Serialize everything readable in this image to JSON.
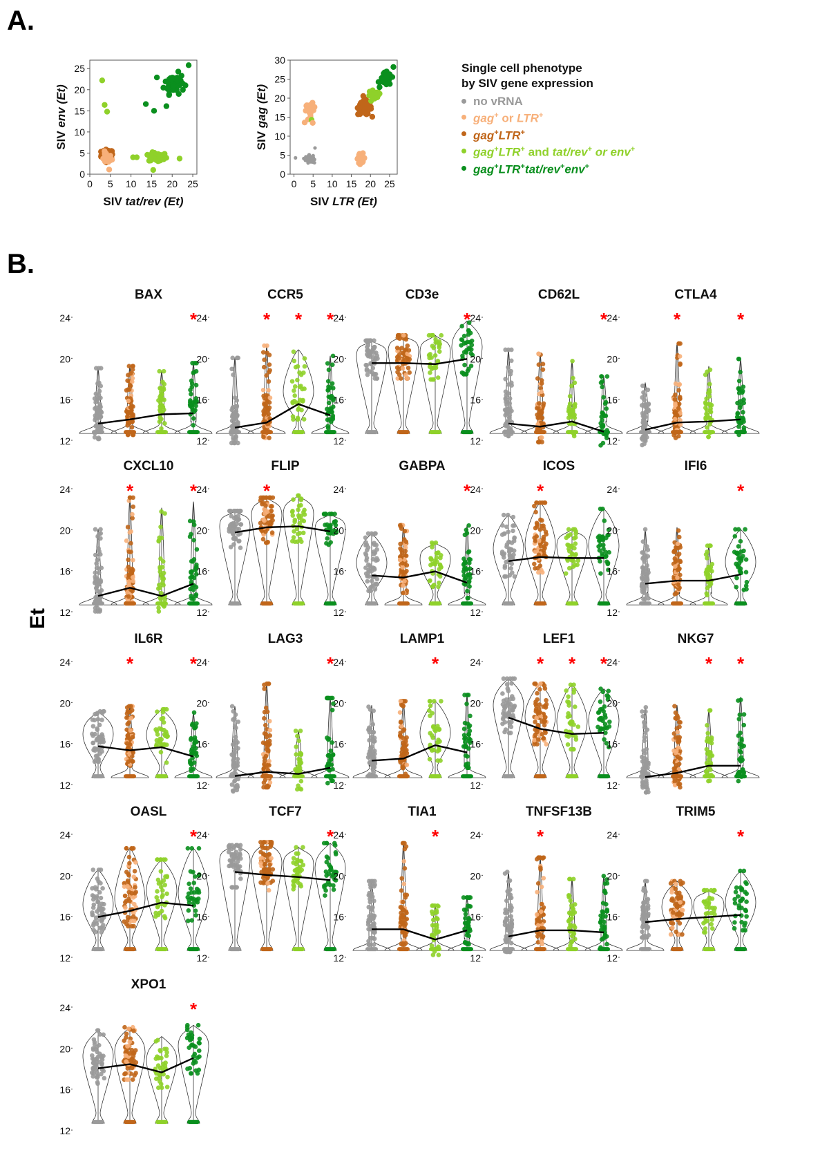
{
  "panels": {
    "a_label": "A.",
    "b_label": "B."
  },
  "colors": {
    "no_vrna": "#9a9a9a",
    "gag_or_ltr": "#f7b07a",
    "gag_ltr": "#c0661a",
    "gag_ltr_tat_or_env": "#8fd12a",
    "gag_ltr_tat_env": "#0a8f1e",
    "significance": "#ff0000"
  },
  "legend": {
    "title_line1": "Single cell phenotype",
    "title_line2": "by SIV gene expression",
    "items": [
      {
        "key": "no_vrna",
        "parts": [
          {
            "t": "no vRNA",
            "i": false
          }
        ]
      },
      {
        "key": "gag_or_ltr",
        "parts": [
          {
            "t": "gag",
            "i": true
          },
          {
            "t": "+",
            "sup": true
          },
          {
            "t": " or ",
            "i": false
          },
          {
            "t": "LTR",
            "i": true
          },
          {
            "t": "+",
            "sup": true
          }
        ]
      },
      {
        "key": "gag_ltr",
        "parts": [
          {
            "t": "gag",
            "i": true
          },
          {
            "t": "+",
            "sup": true
          },
          {
            "t": "LTR",
            "i": true
          },
          {
            "t": "+",
            "sup": true
          }
        ]
      },
      {
        "key": "gag_ltr_tat_or_env",
        "parts": [
          {
            "t": "gag",
            "i": true
          },
          {
            "t": "+",
            "sup": true
          },
          {
            "t": "LTR",
            "i": true
          },
          {
            "t": "+",
            "sup": true
          },
          {
            "t": " and ",
            "i": false
          },
          {
            "t": "tat/rev",
            "i": true
          },
          {
            "t": "+",
            "sup": true
          },
          {
            "t": " or ",
            "i": true
          },
          {
            "t": "env",
            "i": true
          },
          {
            "t": "+",
            "sup": true
          }
        ]
      },
      {
        "key": "gag_ltr_tat_env",
        "parts": [
          {
            "t": "gag",
            "i": true
          },
          {
            "t": "+",
            "sup": true
          },
          {
            "t": "LTR",
            "i": true
          },
          {
            "t": "+",
            "sup": true
          },
          {
            "t": "tat/rev",
            "i": true
          },
          {
            "t": "+",
            "sup": true
          },
          {
            "t": "env",
            "i": true
          },
          {
            "t": "+",
            "sup": true
          }
        ]
      }
    ]
  },
  "chart_data": [
    {
      "type": "scatter",
      "title": "",
      "xlabel_plain": "SIV ",
      "xlabel_italic": "tat/rev (Et)",
      "ylabel_plain": "SIV ",
      "ylabel_italic": "env (Et)",
      "xlim": [
        0,
        26
      ],
      "ylim": [
        0,
        27
      ],
      "xticks": [
        0,
        5,
        10,
        15,
        20,
        25
      ],
      "yticks": [
        0,
        5,
        10,
        15,
        20,
        25
      ],
      "clusters": [
        {
          "group": "gag_ltr",
          "center": [
            4.2,
            4.5
          ],
          "spread": [
            1.3,
            1.2
          ],
          "n": 70
        },
        {
          "group": "gag_or_ltr",
          "center": [
            4.0,
            3.8
          ],
          "spread": [
            1.2,
            1.2
          ],
          "n": 20
        },
        {
          "group": "gag_ltr_tat_or_env",
          "center": [
            16.5,
            4.0
          ],
          "spread": [
            2.0,
            1.0
          ],
          "n": 45
        },
        {
          "group": "gag_ltr_tat_env",
          "center": [
            20.5,
            21.5
          ],
          "spread": [
            2.2,
            2.2
          ],
          "n": 60
        }
      ],
      "points": [
        {
          "group": "gag_ltr_tat_or_env",
          "x": 3.0,
          "y": 22.2
        },
        {
          "group": "gag_ltr_tat_or_env",
          "x": 3.6,
          "y": 16.4
        },
        {
          "group": "gag_ltr_tat_or_env",
          "x": 4.2,
          "y": 14.8
        },
        {
          "group": "gag_ltr_tat_or_env",
          "x": 10.5,
          "y": 4.0
        },
        {
          "group": "gag_ltr_tat_or_env",
          "x": 11.4,
          "y": 4.0
        },
        {
          "group": "gag_ltr_tat_or_env",
          "x": 21.8,
          "y": 3.7
        },
        {
          "group": "gag_ltr_tat_or_env",
          "x": 15.4,
          "y": 1.0
        },
        {
          "group": "gag_ltr_tat_env",
          "x": 13.6,
          "y": 16.6
        },
        {
          "group": "gag_ltr_tat_env",
          "x": 15.6,
          "y": 15.0
        },
        {
          "group": "gag_ltr_tat_env",
          "x": 18.6,
          "y": 16.1
        },
        {
          "group": "gag_ltr_tat_env",
          "x": 24.0,
          "y": 25.8
        },
        {
          "group": "gag_or_ltr",
          "x": 4.7,
          "y": 1.1
        }
      ]
    },
    {
      "type": "scatter",
      "title": "",
      "xlabel_plain": "SIV ",
      "xlabel_italic": "LTR (Et)",
      "ylabel_plain": "SIV ",
      "ylabel_italic": "gag (Et)",
      "xlim": [
        -1,
        27
      ],
      "ylim": [
        0,
        30
      ],
      "xticks": [
        0,
        5,
        10,
        15,
        20,
        25
      ],
      "yticks": [
        0,
        5,
        10,
        15,
        20,
        25,
        30
      ],
      "clusters": [
        {
          "group": "no_vrna",
          "center": [
            4.0,
            4.0
          ],
          "spread": [
            0.9,
            0.9
          ],
          "n": 60,
          "small": true
        },
        {
          "group": "gag_or_ltr",
          "center": [
            4.3,
            17.0
          ],
          "spread": [
            1.1,
            1.4
          ],
          "n": 30
        },
        {
          "group": "gag_or_ltr",
          "center": [
            17.5,
            4.2
          ],
          "spread": [
            1.0,
            1.1
          ],
          "n": 18
        },
        {
          "group": "gag_ltr",
          "center": [
            18.5,
            17.5
          ],
          "spread": [
            1.6,
            1.7
          ],
          "n": 90
        },
        {
          "group": "gag_ltr_tat_or_env",
          "center": [
            21.0,
            20.5
          ],
          "spread": [
            1.6,
            1.5
          ],
          "n": 20
        },
        {
          "group": "gag_ltr_tat_env",
          "center": [
            24.0,
            25.0
          ],
          "spread": [
            1.3,
            1.5
          ],
          "n": 40
        }
      ],
      "points": [
        {
          "group": "no_vrna",
          "x": 0.4,
          "y": 4.3,
          "small": true
        },
        {
          "group": "no_vrna",
          "x": 5.5,
          "y": 6.9,
          "small": true
        },
        {
          "group": "gag_ltr_tat_or_env",
          "x": 4.6,
          "y": 14.3
        },
        {
          "group": "gag_or_ltr",
          "x": 2.8,
          "y": 13.6
        },
        {
          "group": "gag_or_ltr",
          "x": 4.9,
          "y": 13.5
        },
        {
          "group": "gag_ltr_tat_env",
          "x": 26.0,
          "y": 28.2
        }
      ]
    },
    {
      "type": "violin",
      "ylabel": "Et",
      "ylim": [
        12,
        24
      ],
      "yticks": [
        12,
        16,
        20,
        24
      ],
      "groups": [
        "no_vrna",
        "gag_ltr",
        "gag_ltr_tat_or_env",
        "gag_ltr_tat_env"
      ],
      "genes": [
        {
          "name": "BAX",
          "median": [
            13.7,
            14.1,
            14.6,
            14.7
          ],
          "max": [
            19.1,
            19.3,
            18.8,
            19.6
          ],
          "sig": [
            false,
            false,
            false,
            true
          ]
        },
        {
          "name": "CCR5",
          "median": [
            13.3,
            13.8,
            15.6,
            14.5
          ],
          "max": [
            20.1,
            21.3,
            20.9,
            20.3
          ],
          "sig": [
            false,
            true,
            true,
            true
          ]
        },
        {
          "name": "CD3e",
          "median": [
            19.6,
            19.6,
            19.5,
            20.0
          ],
          "max": [
            21.8,
            22.3,
            22.3,
            23.7
          ],
          "sig": [
            false,
            false,
            false,
            true
          ]
        },
        {
          "name": "CD62L",
          "median": [
            13.7,
            13.4,
            13.9,
            12.9
          ],
          "max": [
            20.9,
            20.5,
            19.8,
            18.3
          ],
          "sig": [
            false,
            false,
            false,
            true
          ]
        },
        {
          "name": "CTLA4",
          "median": [
            13.1,
            13.8,
            13.9,
            14.1
          ],
          "max": [
            17.7,
            21.5,
            19.3,
            20.0
          ],
          "sig": [
            false,
            true,
            false,
            true
          ]
        },
        {
          "name": "CXCL10",
          "median": [
            13.6,
            14.4,
            13.6,
            14.8
          ],
          "max": [
            20.1,
            23.2,
            22.2,
            22.8
          ],
          "sig": [
            false,
            true,
            false,
            true
          ]
        },
        {
          "name": "FLIP",
          "median": [
            19.8,
            20.3,
            20.4,
            19.9
          ],
          "max": [
            21.9,
            23.2,
            23.4,
            21.6
          ],
          "sig": [
            false,
            true,
            false,
            false
          ]
        },
        {
          "name": "GABPA",
          "median": [
            15.6,
            15.4,
            16.0,
            14.9
          ],
          "max": [
            19.7,
            20.5,
            18.8,
            20.5
          ],
          "sig": [
            false,
            false,
            false,
            true
          ]
        },
        {
          "name": "ICOS",
          "median": [
            17.0,
            17.4,
            17.3,
            17.3
          ],
          "max": [
            21.5,
            22.7,
            20.1,
            22.1
          ],
          "sig": [
            false,
            true,
            false,
            false
          ]
        },
        {
          "name": "IFI6",
          "median": [
            14.8,
            15.1,
            15.1,
            15.7
          ],
          "max": [
            20.1,
            20.3,
            18.5,
            20.1
          ],
          "sig": [
            false,
            false,
            false,
            true
          ]
        },
        {
          "name": "IL6R",
          "median": [
            15.8,
            15.4,
            15.7,
            14.8
          ],
          "max": [
            19.2,
            19.7,
            19.4,
            19.1
          ],
          "sig": [
            false,
            true,
            false,
            true
          ]
        },
        {
          "name": "LAG3",
          "median": [
            12.9,
            13.3,
            13.1,
            13.7
          ],
          "max": [
            19.7,
            21.9,
            17.3,
            20.5
          ],
          "sig": [
            false,
            false,
            false,
            true
          ]
        },
        {
          "name": "LAMP1",
          "median": [
            14.4,
            14.6,
            15.9,
            15.2
          ],
          "max": [
            19.8,
            20.2,
            20.2,
            20.8
          ],
          "sig": [
            false,
            false,
            true,
            false
          ]
        },
        {
          "name": "LEF1",
          "median": [
            18.6,
            17.5,
            17.0,
            17.1
          ],
          "max": [
            22.4,
            21.9,
            21.8,
            21.4
          ],
          "sig": [
            false,
            true,
            true,
            true
          ]
        },
        {
          "name": "NKG7",
          "median": [
            12.8,
            13.2,
            13.9,
            13.9
          ],
          "max": [
            19.6,
            19.8,
            19.3,
            20.6
          ],
          "sig": [
            false,
            false,
            true,
            true
          ]
        },
        {
          "name": "OASL",
          "median": [
            16.0,
            16.6,
            17.4,
            17.1
          ],
          "max": [
            20.6,
            22.7,
            21.6,
            22.7
          ],
          "sig": [
            false,
            false,
            false,
            true
          ]
        },
        {
          "name": "TCF7",
          "median": [
            20.4,
            20.1,
            19.9,
            19.6
          ],
          "max": [
            23.0,
            23.3,
            22.8,
            23.2
          ],
          "sig": [
            false,
            false,
            false,
            true
          ]
        },
        {
          "name": "TIA1",
          "median": [
            14.8,
            14.8,
            13.8,
            14.7
          ],
          "max": [
            19.5,
            23.2,
            17.1,
            17.9
          ],
          "sig": [
            false,
            false,
            true,
            false
          ]
        },
        {
          "name": "TNFSF13B",
          "median": [
            14.1,
            14.7,
            14.7,
            14.5
          ],
          "max": [
            20.4,
            21.8,
            19.7,
            20.0
          ],
          "sig": [
            false,
            true,
            false,
            false
          ]
        },
        {
          "name": "TRIM5",
          "median": [
            15.5,
            15.8,
            16.0,
            16.2
          ],
          "max": [
            19.5,
            19.5,
            18.6,
            20.5
          ],
          "sig": [
            false,
            false,
            false,
            true
          ]
        },
        {
          "name": "XPO1",
          "median": [
            18.1,
            18.5,
            17.7,
            19.1
          ],
          "max": [
            21.8,
            22.1,
            21.2,
            22.3
          ],
          "sig": [
            false,
            false,
            false,
            true
          ]
        }
      ]
    }
  ]
}
